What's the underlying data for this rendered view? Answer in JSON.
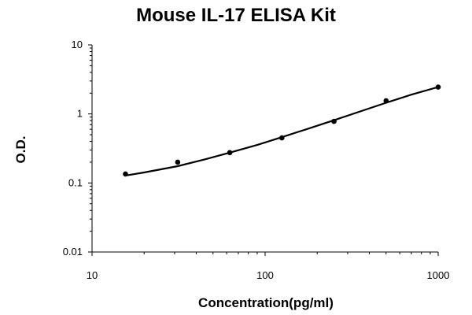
{
  "chart_data": {
    "type": "scatter",
    "title": "Mouse IL-17 ELISA Kit",
    "xlabel": "Concentration(pg/ml)",
    "ylabel": "O.D.",
    "xscale": "log",
    "yscale": "log",
    "xlim": [
      10,
      1000
    ],
    "ylim": [
      0.01,
      10
    ],
    "xticks": [
      10,
      100,
      1000
    ],
    "xtick_labels": [
      "10",
      "100",
      "1000"
    ],
    "yticks": [
      0.01,
      0.1,
      1,
      10
    ],
    "ytick_labels": [
      "0.01",
      "0.1",
      "1",
      "10"
    ],
    "grid": false,
    "legend": "none",
    "series": [
      {
        "points": [
          {
            "x": 15.6,
            "y": 0.135
          },
          {
            "x": 31.25,
            "y": 0.2
          },
          {
            "x": 62.5,
            "y": 0.275
          },
          {
            "x": 125,
            "y": 0.45
          },
          {
            "x": 250,
            "y": 0.78
          },
          {
            "x": 500,
            "y": 1.55
          },
          {
            "x": 1000,
            "y": 2.45
          }
        ],
        "fit_curve": [
          {
            "x": 15.6,
            "y": 0.128
          },
          {
            "x": 20,
            "y": 0.142
          },
          {
            "x": 31.25,
            "y": 0.175
          },
          {
            "x": 45,
            "y": 0.22
          },
          {
            "x": 62.5,
            "y": 0.275
          },
          {
            "x": 90,
            "y": 0.355
          },
          {
            "x": 125,
            "y": 0.46
          },
          {
            "x": 180,
            "y": 0.62
          },
          {
            "x": 250,
            "y": 0.81
          },
          {
            "x": 360,
            "y": 1.1
          },
          {
            "x": 500,
            "y": 1.45
          },
          {
            "x": 700,
            "y": 1.9
          },
          {
            "x": 1000,
            "y": 2.45
          }
        ]
      }
    ],
    "colors": {
      "marker": "#000000",
      "line": "#000000"
    }
  }
}
